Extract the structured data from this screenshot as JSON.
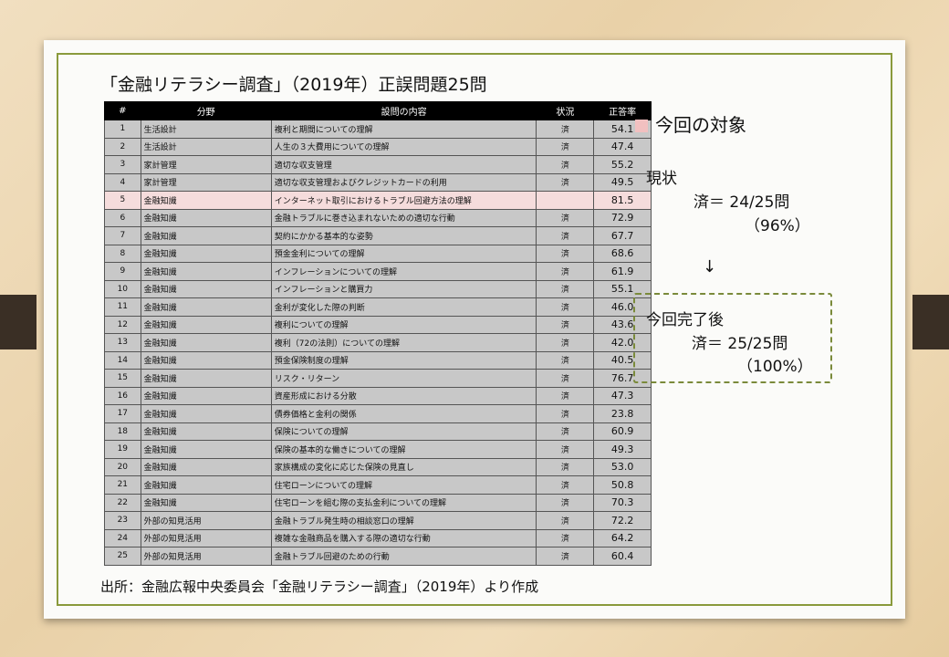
{
  "title": "「金融リテラシー調査」（2019年）正誤問題25問",
  "table": {
    "headers": [
      "#",
      "分野",
      "設問の内容",
      "状況",
      "正答率"
    ],
    "rows": [
      {
        "no": "1",
        "field": "生活設計",
        "question": "複利と期間についての理解",
        "status": "済",
        "rate": "54.1"
      },
      {
        "no": "2",
        "field": "生活設計",
        "question": "人生の３大費用についての理解",
        "status": "済",
        "rate": "47.4"
      },
      {
        "no": "3",
        "field": "家計管理",
        "question": "適切な収支管理",
        "status": "済",
        "rate": "55.2"
      },
      {
        "no": "4",
        "field": "家計管理",
        "question": "適切な収支管理およびクレジットカードの利用",
        "status": "済",
        "rate": "49.5"
      },
      {
        "no": "5",
        "field": "金融知識",
        "question": "インターネット取引におけるトラブル回避方法の理解",
        "status": "",
        "rate": "81.5",
        "highlight": true
      },
      {
        "no": "6",
        "field": "金融知識",
        "question": "金融トラブルに巻き込まれないための適切な行動",
        "status": "済",
        "rate": "72.9"
      },
      {
        "no": "7",
        "field": "金融知識",
        "question": "契約にかかる基本的な姿勢",
        "status": "済",
        "rate": "67.7"
      },
      {
        "no": "8",
        "field": "金融知識",
        "question": "預金金利についての理解",
        "status": "済",
        "rate": "68.6"
      },
      {
        "no": "9",
        "field": "金融知識",
        "question": "インフレーションについての理解",
        "status": "済",
        "rate": "61.9"
      },
      {
        "no": "10",
        "field": "金融知識",
        "question": "インフレーションと購買力",
        "status": "済",
        "rate": "55.1"
      },
      {
        "no": "11",
        "field": "金融知識",
        "question": "金利が変化した際の判断",
        "status": "済",
        "rate": "46.0"
      },
      {
        "no": "12",
        "field": "金融知識",
        "question": "複利についての理解",
        "status": "済",
        "rate": "43.6"
      },
      {
        "no": "13",
        "field": "金融知識",
        "question": "複利（72の法則）についての理解",
        "status": "済",
        "rate": "42.0"
      },
      {
        "no": "14",
        "field": "金融知識",
        "question": "預金保険制度の理解",
        "status": "済",
        "rate": "40.5"
      },
      {
        "no": "15",
        "field": "金融知識",
        "question": "リスク・リターン",
        "status": "済",
        "rate": "76.7"
      },
      {
        "no": "16",
        "field": "金融知識",
        "question": "資産形成における分散",
        "status": "済",
        "rate": "47.3"
      },
      {
        "no": "17",
        "field": "金融知識",
        "question": "債券価格と金利の関係",
        "status": "済",
        "rate": "23.8"
      },
      {
        "no": "18",
        "field": "金融知識",
        "question": "保険についての理解",
        "status": "済",
        "rate": "60.9"
      },
      {
        "no": "19",
        "field": "金融知識",
        "question": "保険の基本的な働きについての理解",
        "status": "済",
        "rate": "49.3"
      },
      {
        "no": "20",
        "field": "金融知識",
        "question": "家族構成の変化に応じた保険の見直し",
        "status": "済",
        "rate": "53.0"
      },
      {
        "no": "21",
        "field": "金融知識",
        "question": "住宅ローンについての理解",
        "status": "済",
        "rate": "50.8"
      },
      {
        "no": "22",
        "field": "金融知識",
        "question": "住宅ローンを組む際の支払金利についての理解",
        "status": "済",
        "rate": "70.3"
      },
      {
        "no": "23",
        "field": "外部の知見活用",
        "question": "金融トラブル発生時の相談窓口の理解",
        "status": "済",
        "rate": "72.2"
      },
      {
        "no": "24",
        "field": "外部の知見活用",
        "question": "複雑な金融商品を購入する際の適切な行動",
        "status": "済",
        "rate": "64.2"
      },
      {
        "no": "25",
        "field": "外部の知見活用",
        "question": "金融トラブル回避のための行動",
        "status": "済",
        "rate": "60.4"
      }
    ]
  },
  "source": "出所：金融広報中央委員会「金融リテラシー調査」（2019年）より作成",
  "side": {
    "heading": "今回の対象",
    "current_label": "現状",
    "current_value": "済＝ 24/25問",
    "current_pct": "（96%）",
    "arrow": "↓",
    "after_label": "今回完了後",
    "after_value": "済＝ 25/25問",
    "after_pct": "（100%）"
  },
  "colors": {
    "frame": "#8a9a3c",
    "highlight_row": "#f5dcdc",
    "marker": "#f2c0c0",
    "header_bg": "#000000"
  }
}
